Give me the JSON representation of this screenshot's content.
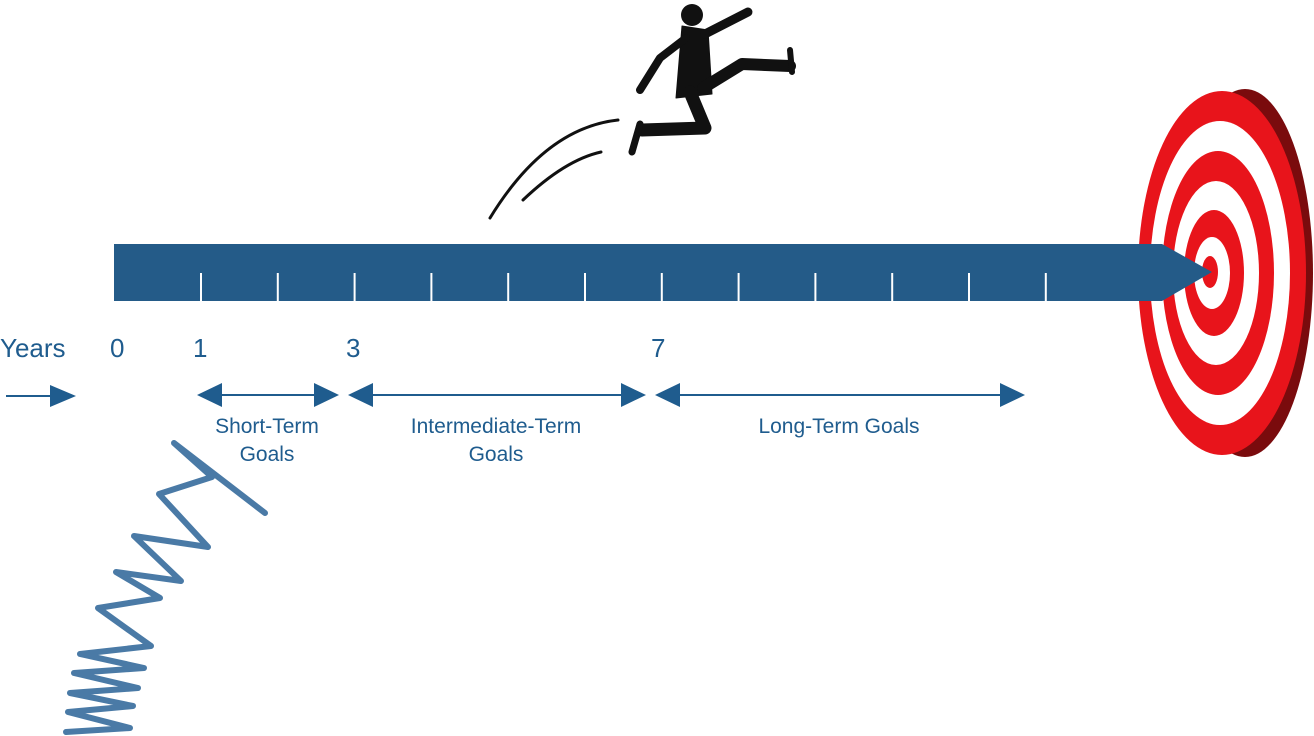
{
  "years_label": "Years",
  "ticks": [
    {
      "value": "0"
    },
    {
      "value": "1"
    },
    {
      "value": "3"
    },
    {
      "value": "7"
    }
  ],
  "ranges": [
    {
      "line1": "Short-Term",
      "line2": "Goals"
    },
    {
      "line1": "Intermediate-Term",
      "line2": "Goals"
    },
    {
      "line1": "Long-Term Goals",
      "line2": ""
    }
  ],
  "colors": {
    "timeline": "#245b88",
    "text": "#1f5c8e",
    "spring": "#4a7aa6",
    "target_red": "#e8141b",
    "target_dark": "#7a0b0d",
    "figure": "#111111"
  },
  "icons": [
    "spring-icon",
    "jumping-businessman-icon",
    "target-icon"
  ]
}
